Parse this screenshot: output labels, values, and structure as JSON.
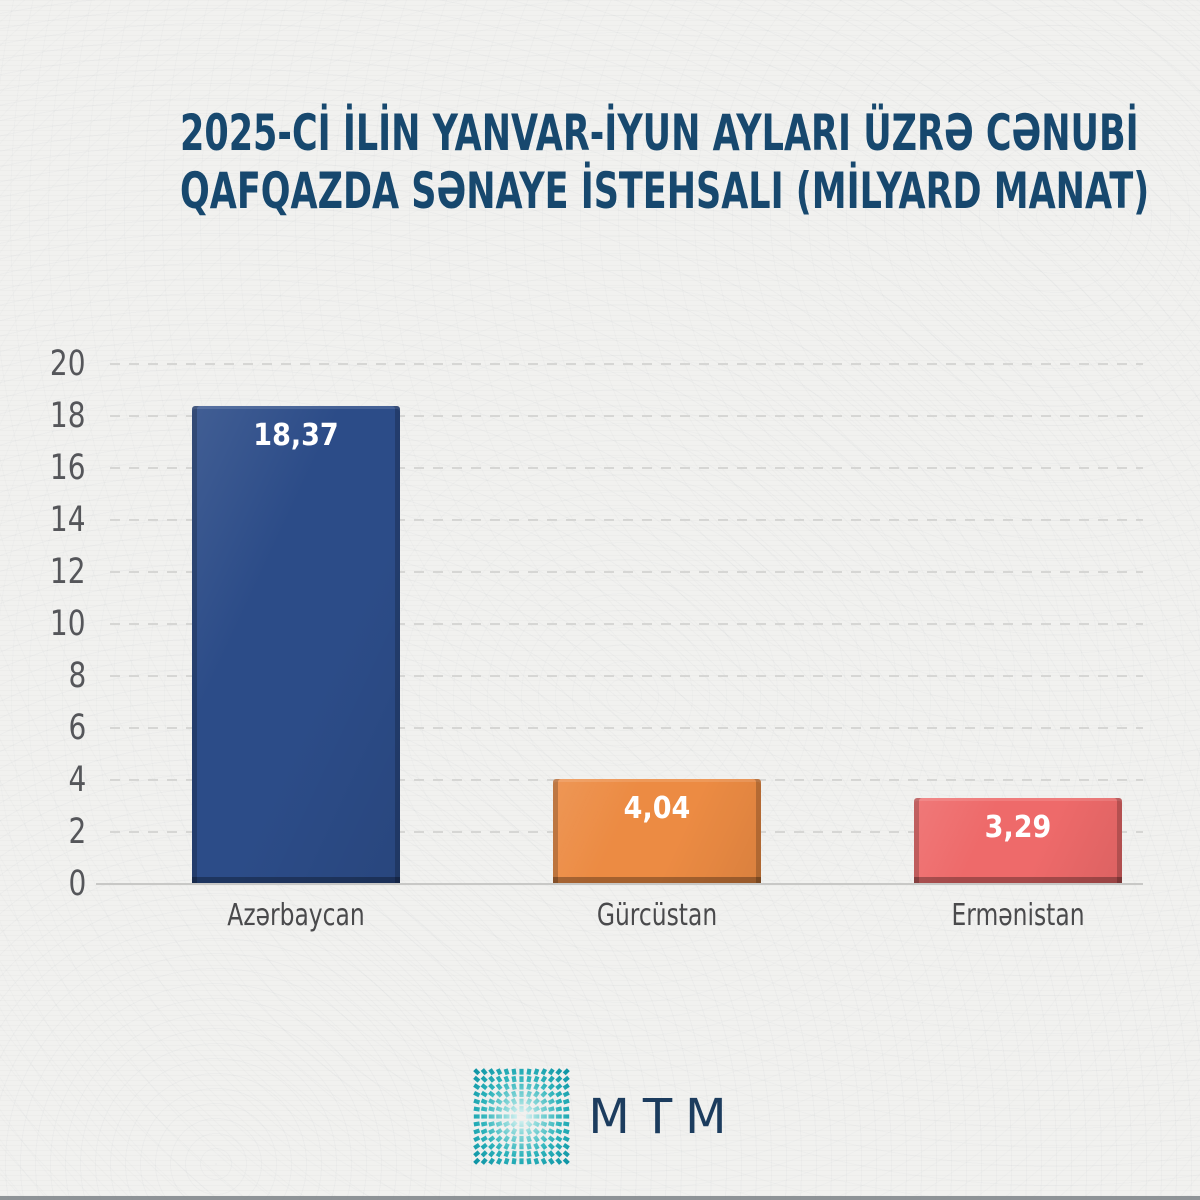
{
  "page": {
    "background_color": "#f1f1ef"
  },
  "title": {
    "lines": [
      "2025-Cİ İLİN YANVAR-İYUN AYLARI ÜZRƏ CƏNUBİ",
      "QAFQAZDA SƏNAYE İSTEHSALI (MİLYARD MANAT)"
    ],
    "color": "#17486e"
  },
  "chart_data": {
    "type": "bar",
    "title": "2025-ci ilin yanvar-iyun ayları üzrə Cənubi Qafqazda sənaye istehsalı (milyard manat)",
    "categories": [
      "Azərbaycan",
      "Gürcüstan",
      "Ermənistan"
    ],
    "values": [
      18.37,
      4.04,
      3.29
    ],
    "value_labels": [
      "18,37",
      "4,04",
      "3,29"
    ],
    "bar_colors": [
      "#2c4c88",
      "#ec8b43",
      "#ee6a6a"
    ],
    "value_label_color": "#ffffff",
    "xlabel": "",
    "ylabel": "",
    "ylim": [
      0,
      20
    ],
    "yticks": [
      0,
      2,
      4,
      6,
      8,
      10,
      12,
      14,
      16,
      18,
      20
    ],
    "ytick_labels": [
      "0",
      "2",
      "4",
      "6",
      "8",
      "10",
      "12",
      "14",
      "16",
      "18",
      "20"
    ],
    "grid": "dashed-horizontal",
    "gridline_color": "#d6d6d4",
    "tick_label_color": "#55565a",
    "legend": "none"
  },
  "footer": {
    "logo_text": "MTM",
    "logo_text_color": "#1c3c5e",
    "logo_mark": "starburst-icon",
    "logo_mark_colors": [
      "#e8f7f7",
      "#8ed9da",
      "#2db3bb",
      "#0d93a4"
    ]
  }
}
